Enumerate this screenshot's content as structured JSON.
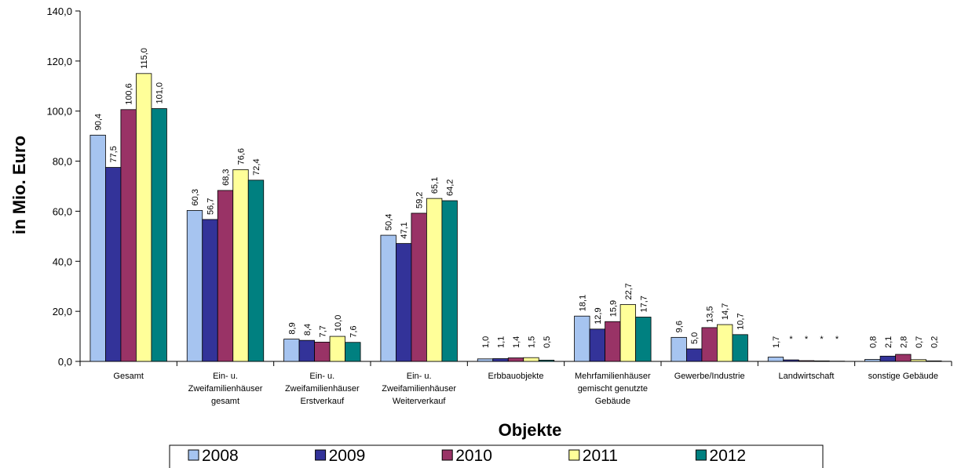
{
  "chart_data": {
    "type": "bar",
    "xlabel": "Objekte",
    "ylabel": "in Mio. Euro",
    "ylim": [
      0,
      140
    ],
    "yticks": [
      0,
      20,
      40,
      60,
      80,
      100,
      120,
      140
    ],
    "ytick_labels": [
      "0,0",
      "20,0",
      "40,0",
      "60,0",
      "80,0",
      "100,0",
      "120,0",
      "140,0"
    ],
    "grid": false,
    "legend_position": "bottom",
    "categories": [
      [
        "Gesamt"
      ],
      [
        "Ein- u.",
        "Zweifamilienhäuser",
        "gesamt"
      ],
      [
        "Ein- u.",
        "Zweifamilienhäuser",
        "Erstverkauf"
      ],
      [
        "Ein- u.",
        "Zweifamilienhäuser",
        "Weiterverkauf"
      ],
      [
        "Erbbauobjekte"
      ],
      [
        "Mehrfamilienhäuser",
        "gemischt genutzte",
        "Gebäude"
      ],
      [
        "Gewerbe/Industrie"
      ],
      [
        "Landwirtschaft"
      ],
      [
        "sonstige Gebäude"
      ]
    ],
    "series": [
      {
        "name": "2008",
        "color": "#a6c4f0",
        "values": [
          90.4,
          60.3,
          8.9,
          50.4,
          1.0,
          18.1,
          9.6,
          1.7,
          0.8
        ],
        "labels": [
          "90,4",
          "60,3",
          "8,9",
          "50,4",
          "1,0",
          "18,1",
          "9,6",
          "1,7",
          "0,8"
        ]
      },
      {
        "name": "2009",
        "color": "#333399",
        "values": [
          77.5,
          56.7,
          8.4,
          47.1,
          1.1,
          12.9,
          5.0,
          0.6,
          2.1
        ],
        "labels": [
          "77,5",
          "56,7",
          "8,4",
          "47,1",
          "1,1",
          "12,9",
          "5,0",
          "*",
          "2,1"
        ]
      },
      {
        "name": "2010",
        "color": "#993366",
        "values": [
          100.6,
          68.3,
          7.7,
          59.2,
          1.4,
          15.9,
          13.5,
          0.3,
          2.8
        ],
        "labels": [
          "100,6",
          "68,3",
          "7,7",
          "59,2",
          "1,4",
          "15,9",
          "13,5",
          "*",
          "2,8"
        ]
      },
      {
        "name": "2011",
        "color": "#ffff99",
        "values": [
          115.0,
          76.6,
          10.0,
          65.1,
          1.5,
          22.7,
          14.7,
          0.2,
          0.7
        ],
        "labels": [
          "115,0",
          "76,6",
          "10,0",
          "65,1",
          "1,5",
          "22,7",
          "14,7",
          "*",
          "0,7"
        ]
      },
      {
        "name": "2012",
        "color": "#008080",
        "values": [
          101.0,
          72.4,
          7.6,
          64.2,
          0.5,
          17.7,
          10.7,
          0.1,
          0.2
        ],
        "labels": [
          "101,0",
          "72,4",
          "7,6",
          "64,2",
          "0,5",
          "17,7",
          "10,7",
          "*",
          "0,2"
        ]
      }
    ]
  }
}
